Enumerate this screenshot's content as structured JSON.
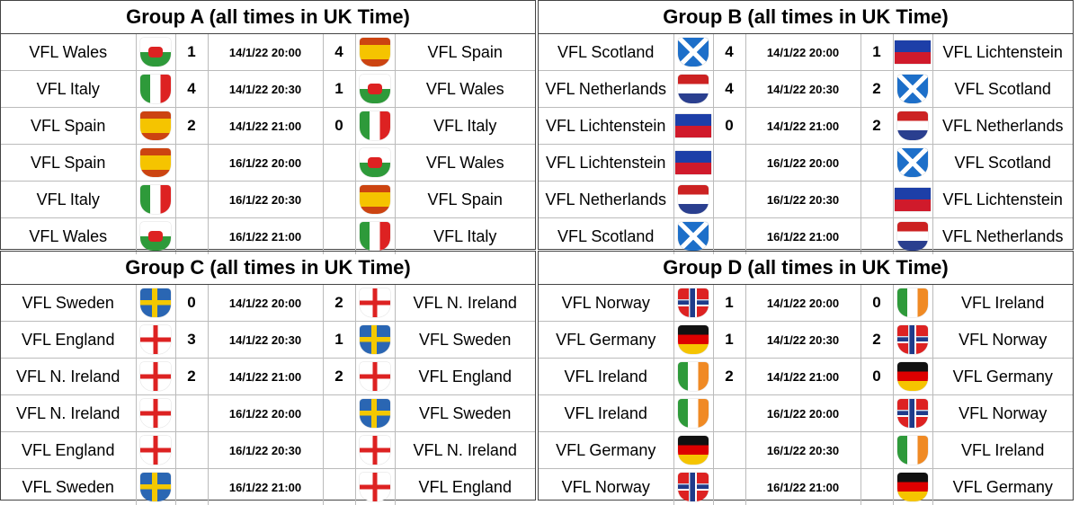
{
  "groups": [
    {
      "title": "Group A (all times in UK Time)",
      "matches": [
        {
          "home": "VFL Wales",
          "home_score": 1,
          "time": "14/1/22 20:00",
          "away_score": 4,
          "away": "VFL Spain"
        },
        {
          "home": "VFL Italy",
          "home_score": 4,
          "time": "14/1/22 20:30",
          "away_score": 1,
          "away": "VFL Wales"
        },
        {
          "home": "VFL Spain",
          "home_score": 2,
          "time": "14/1/22 21:00",
          "away_score": 0,
          "away": "VFL Italy"
        },
        {
          "home": "VFL Spain",
          "home_score": null,
          "time": "16/1/22 20:00",
          "away_score": null,
          "away": "VFL Wales"
        },
        {
          "home": "VFL Italy",
          "home_score": null,
          "time": "16/1/22 20:30",
          "away_score": null,
          "away": "VFL Spain"
        },
        {
          "home": "VFL Wales",
          "home_score": null,
          "time": "16/1/22 21:00",
          "away_score": null,
          "away": "VFL Italy"
        }
      ]
    },
    {
      "title": "Group B (all times in UK Time)",
      "matches": [
        {
          "home": "VFL Scotland",
          "home_score": 4,
          "time": "14/1/22 20:00",
          "away_score": 1,
          "away": "VFL Lichtenstein"
        },
        {
          "home": "VFL Netherlands",
          "home_score": 4,
          "time": "14/1/22 20:30",
          "away_score": 2,
          "away": "VFL Scotland"
        },
        {
          "home": "VFL Lichtenstein",
          "home_score": 0,
          "time": "14/1/22 21:00",
          "away_score": 2,
          "away": "VFL Netherlands"
        },
        {
          "home": "VFL Lichtenstein",
          "home_score": null,
          "time": "16/1/22 20:00",
          "away_score": null,
          "away": "VFL Scotland"
        },
        {
          "home": "VFL Netherlands",
          "home_score": null,
          "time": "16/1/22 20:30",
          "away_score": null,
          "away": "VFL Lichtenstein"
        },
        {
          "home": "VFL Scotland",
          "home_score": null,
          "time": "16/1/22 21:00",
          "away_score": null,
          "away": "VFL Netherlands"
        }
      ]
    },
    {
      "title": "Group C (all times in UK Time)",
      "matches": [
        {
          "home": "VFL Sweden",
          "home_score": 0,
          "time": "14/1/22 20:00",
          "away_score": 2,
          "away": "VFL N. Ireland"
        },
        {
          "home": "VFL England",
          "home_score": 3,
          "time": "14/1/22 20:30",
          "away_score": 1,
          "away": "VFL Sweden"
        },
        {
          "home": "VFL N. Ireland",
          "home_score": 2,
          "time": "14/1/22 21:00",
          "away_score": 2,
          "away": "VFL England"
        },
        {
          "home": "VFL N. Ireland",
          "home_score": null,
          "time": "16/1/22 20:00",
          "away_score": null,
          "away": "VFL Sweden"
        },
        {
          "home": "VFL England",
          "home_score": null,
          "time": "16/1/22 20:30",
          "away_score": null,
          "away": "VFL N. Ireland"
        },
        {
          "home": "VFL Sweden",
          "home_score": null,
          "time": "16/1/22 21:00",
          "away_score": null,
          "away": "VFL England"
        }
      ]
    },
    {
      "title": "Group D (all times in UK Time)",
      "matches": [
        {
          "home": "VFL Norway",
          "home_score": 1,
          "time": "14/1/22 20:00",
          "away_score": 0,
          "away": "VFL Ireland"
        },
        {
          "home": "VFL Germany",
          "home_score": 1,
          "time": "14/1/22 20:30",
          "away_score": 2,
          "away": "VFL Norway"
        },
        {
          "home": "VFL Ireland",
          "home_score": 2,
          "time": "14/1/22 21:00",
          "away_score": 0,
          "away": "VFL Germany"
        },
        {
          "home": "VFL Ireland",
          "home_score": null,
          "time": "16/1/22 20:00",
          "away_score": null,
          "away": "VFL Norway"
        },
        {
          "home": "VFL Germany",
          "home_score": null,
          "time": "16/1/22 20:30",
          "away_score": null,
          "away": "VFL Ireland"
        },
        {
          "home": "VFL Norway",
          "home_score": null,
          "time": "16/1/22 21:00",
          "away_score": null,
          "away": "VFL Germany"
        }
      ]
    }
  ]
}
